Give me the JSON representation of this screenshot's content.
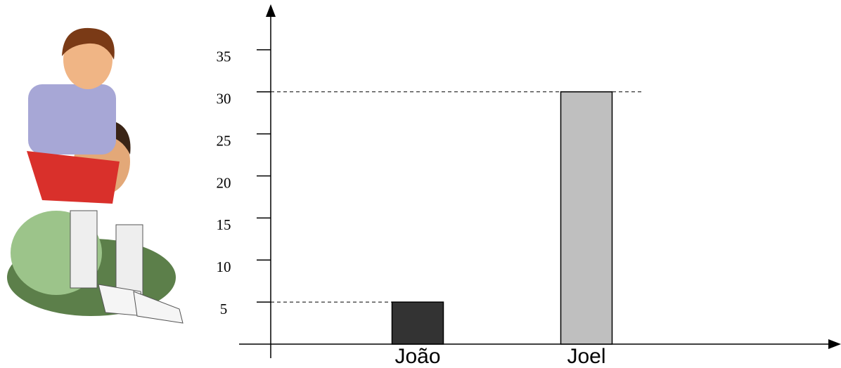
{
  "chart_data": {
    "type": "bar",
    "categories": [
      "João",
      "Joel"
    ],
    "values": [
      5,
      30
    ],
    "colors": [
      "#333333",
      "#bfbfbf"
    ],
    "ylim": [
      0,
      40
    ],
    "yticks": [
      5,
      10,
      15,
      20,
      25,
      30,
      35
    ],
    "guide_lines": true
  }
}
